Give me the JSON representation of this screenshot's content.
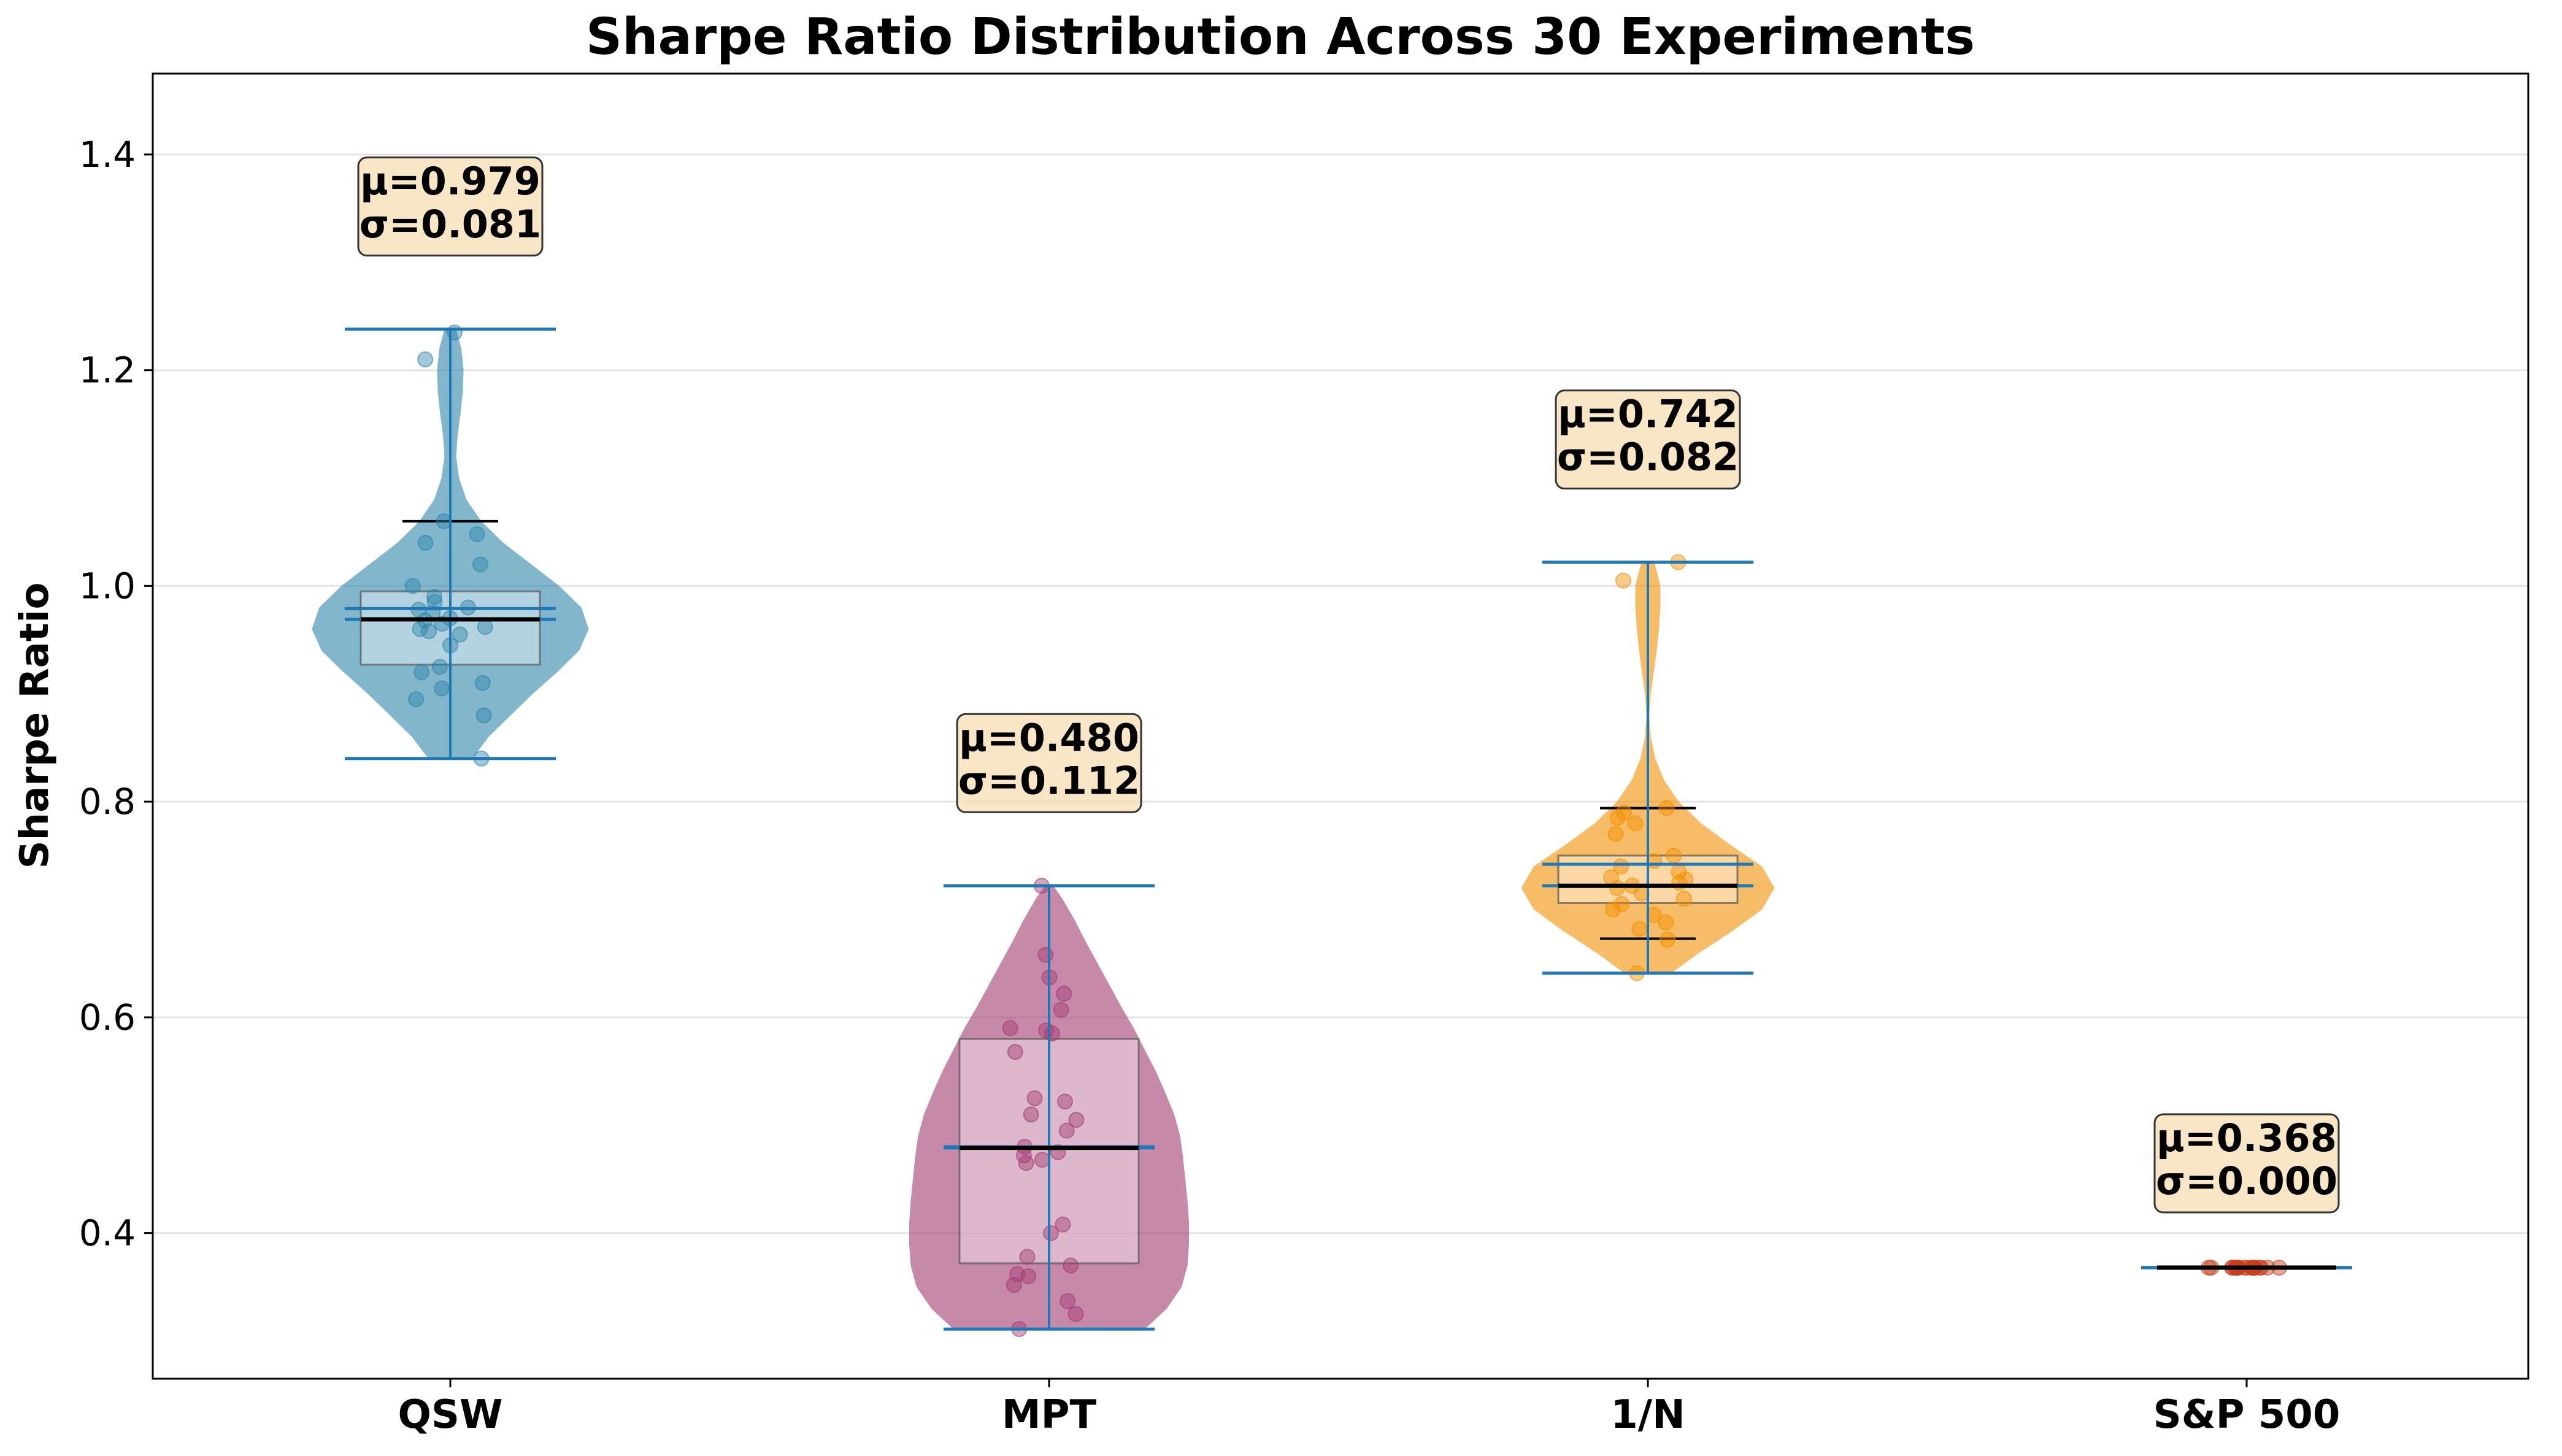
{
  "chart_data": {
    "type": "violin",
    "title": "Sharpe Ratio Distribution Across 30 Experiments",
    "xlabel": "",
    "ylabel": "Sharpe Ratio",
    "ylim": [
      0.265,
      1.475
    ],
    "yticks": [
      0.4,
      0.6,
      0.8,
      1.0,
      1.2,
      1.4
    ],
    "ytick_labels": [
      "0.4",
      "0.6",
      "0.8",
      "1.0",
      "1.2",
      "1.4"
    ],
    "grid": true,
    "categories": [
      "QSW",
      "MPT",
      "1/N",
      "S&P 500"
    ],
    "series": [
      {
        "name": "QSW",
        "color": "#2E86AB",
        "mean": 0.979,
        "std": 0.081,
        "annotation": [
          "μ=0.979",
          "σ=0.081"
        ],
        "min": 0.84,
        "max": 1.238,
        "median": 0.969,
        "q1": 0.927,
        "q3": 0.995,
        "whisker_low": 0.84,
        "whisker_high": 1.06,
        "points": [
          0.84,
          0.88,
          0.895,
          0.905,
          0.91,
          0.92,
          0.925,
          0.945,
          0.955,
          0.958,
          0.96,
          0.962,
          0.965,
          0.968,
          0.97,
          0.975,
          0.978,
          0.98,
          0.985,
          0.99,
          1.0,
          1.02,
          1.04,
          1.048,
          1.06,
          1.21,
          1.235
        ],
        "density": [
          [
            0.84,
            0.3
          ],
          [
            0.86,
            0.52
          ],
          [
            0.88,
            0.82
          ],
          [
            0.9,
            1.12
          ],
          [
            0.92,
            1.45
          ],
          [
            0.94,
            1.75
          ],
          [
            0.96,
            1.88
          ],
          [
            0.98,
            1.78
          ],
          [
            1.0,
            1.48
          ],
          [
            1.02,
            1.1
          ],
          [
            1.04,
            0.72
          ],
          [
            1.06,
            0.42
          ],
          [
            1.08,
            0.22
          ],
          [
            1.1,
            0.12
          ],
          [
            1.12,
            0.08
          ],
          [
            1.14,
            0.1
          ],
          [
            1.16,
            0.14
          ],
          [
            1.18,
            0.17
          ],
          [
            1.2,
            0.18
          ],
          [
            1.22,
            0.15
          ],
          [
            1.238,
            0.08
          ]
        ]
      },
      {
        "name": "MPT",
        "color": "#A23B72",
        "mean": 0.48,
        "std": 0.112,
        "annotation": [
          "μ=0.480",
          "σ=0.112"
        ],
        "min": 0.311,
        "max": 0.722,
        "median": 0.479,
        "q1": 0.372,
        "q3": 0.58,
        "whisker_low": 0.311,
        "whisker_high": 0.722,
        "points": [
          0.311,
          0.325,
          0.337,
          0.352,
          0.36,
          0.362,
          0.37,
          0.378,
          0.4,
          0.408,
          0.465,
          0.468,
          0.472,
          0.475,
          0.48,
          0.495,
          0.505,
          0.51,
          0.522,
          0.525,
          0.568,
          0.585,
          0.588,
          0.59,
          0.607,
          0.622,
          0.637,
          0.658,
          0.722
        ],
        "density": [
          [
            0.311,
            1.3
          ],
          [
            0.33,
            1.6
          ],
          [
            0.35,
            1.8
          ],
          [
            0.37,
            1.88
          ],
          [
            0.39,
            1.9
          ],
          [
            0.41,
            1.9
          ],
          [
            0.43,
            1.88
          ],
          [
            0.45,
            1.85
          ],
          [
            0.47,
            1.82
          ],
          [
            0.49,
            1.78
          ],
          [
            0.51,
            1.7
          ],
          [
            0.53,
            1.58
          ],
          [
            0.55,
            1.45
          ],
          [
            0.57,
            1.3
          ],
          [
            0.59,
            1.15
          ],
          [
            0.61,
            0.98
          ],
          [
            0.63,
            0.82
          ],
          [
            0.65,
            0.66
          ],
          [
            0.67,
            0.5
          ],
          [
            0.69,
            0.35
          ],
          [
            0.71,
            0.18
          ],
          [
            0.722,
            0.06
          ]
        ]
      },
      {
        "name": "1/N",
        "color": "#F18F01",
        "mean": 0.742,
        "std": 0.082,
        "annotation": [
          "μ=0.742",
          "σ=0.082"
        ],
        "min": 0.641,
        "max": 1.022,
        "median": 0.722,
        "q1": 0.706,
        "q3": 0.75,
        "whisker_low": 0.673,
        "whisker_high": 0.794,
        "points": [
          0.641,
          0.672,
          0.682,
          0.688,
          0.695,
          0.7,
          0.705,
          0.71,
          0.715,
          0.72,
          0.722,
          0.725,
          0.728,
          0.73,
          0.735,
          0.74,
          0.745,
          0.75,
          0.77,
          0.78,
          0.785,
          0.79,
          0.794,
          1.005,
          1.022
        ],
        "density": [
          [
            0.641,
            0.32
          ],
          [
            0.66,
            0.7
          ],
          [
            0.68,
            1.15
          ],
          [
            0.7,
            1.55
          ],
          [
            0.72,
            1.72
          ],
          [
            0.74,
            1.55
          ],
          [
            0.76,
            1.12
          ],
          [
            0.78,
            0.72
          ],
          [
            0.8,
            0.42
          ],
          [
            0.82,
            0.22
          ],
          [
            0.84,
            0.1
          ],
          [
            0.86,
            0.04
          ],
          [
            0.88,
            0.02
          ],
          [
            0.9,
            0.04
          ],
          [
            0.92,
            0.08
          ],
          [
            0.94,
            0.12
          ],
          [
            0.96,
            0.15
          ],
          [
            0.98,
            0.17
          ],
          [
            1.0,
            0.17
          ],
          [
            1.022,
            0.09
          ]
        ]
      },
      {
        "name": "S&P 500",
        "color": "#C73E1D",
        "mean": 0.368,
        "std": 0.0,
        "annotation": [
          "μ=0.368",
          "σ=0.000"
        ],
        "min": 0.368,
        "max": 0.368,
        "median": 0.368,
        "q1": 0.368,
        "q3": 0.368,
        "whisker_low": 0.368,
        "whisker_high": 0.368,
        "points": [
          0.368,
          0.368,
          0.368,
          0.368,
          0.368,
          0.368,
          0.368,
          0.368,
          0.368,
          0.368,
          0.368,
          0.368,
          0.368,
          0.368,
          0.368,
          0.368,
          0.368,
          0.368,
          0.368,
          0.368
        ],
        "density": []
      }
    ]
  }
}
